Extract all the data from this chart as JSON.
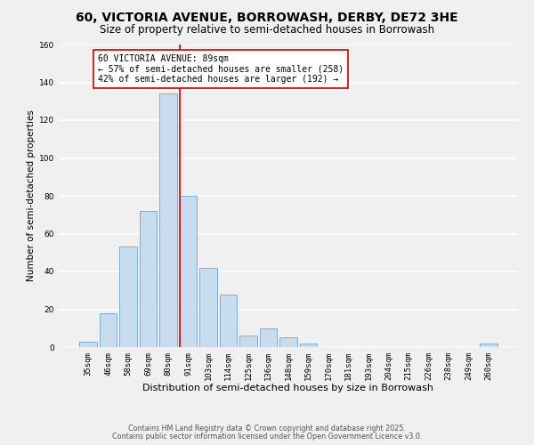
{
  "title": "60, VICTORIA AVENUE, BORROWASH, DERBY, DE72 3HE",
  "subtitle": "Size of property relative to semi-detached houses in Borrowash",
  "xlabel": "Distribution of semi-detached houses by size in Borrowash",
  "ylabel": "Number of semi-detached properties",
  "bar_labels": [
    "35sqm",
    "46sqm",
    "58sqm",
    "69sqm",
    "80sqm",
    "91sqm",
    "103sqm",
    "114sqm",
    "125sqm",
    "136sqm",
    "148sqm",
    "159sqm",
    "170sqm",
    "181sqm",
    "193sqm",
    "204sqm",
    "215sqm",
    "226sqm",
    "238sqm",
    "249sqm",
    "260sqm"
  ],
  "bar_values": [
    3,
    18,
    53,
    72,
    134,
    80,
    42,
    28,
    6,
    10,
    5,
    2,
    0,
    0,
    0,
    0,
    0,
    0,
    0,
    0,
    2
  ],
  "bar_color": "#c8dcf0",
  "bar_edge_color": "#7aafd4",
  "marker_line_index": 5,
  "marker_line_color": "#cc0000",
  "annotation_title": "60 VICTORIA AVENUE: 89sqm",
  "annotation_line1": "← 57% of semi-detached houses are smaller (258)",
  "annotation_line2": "42% of semi-detached houses are larger (192) →",
  "ylim": [
    0,
    160
  ],
  "yticks": [
    0,
    20,
    40,
    60,
    80,
    100,
    120,
    140,
    160
  ],
  "footer1": "Contains HM Land Registry data © Crown copyright and database right 2025.",
  "footer2": "Contains public sector information licensed under the Open Government Licence v3.0.",
  "background_color": "#f0f0f0",
  "grid_color": "#ffffff",
  "title_fontsize": 10,
  "subtitle_fontsize": 8.5,
  "xlabel_fontsize": 8,
  "ylabel_fontsize": 7.5,
  "tick_fontsize": 6.5,
  "annotation_fontsize": 7,
  "footer_fontsize": 5.8
}
